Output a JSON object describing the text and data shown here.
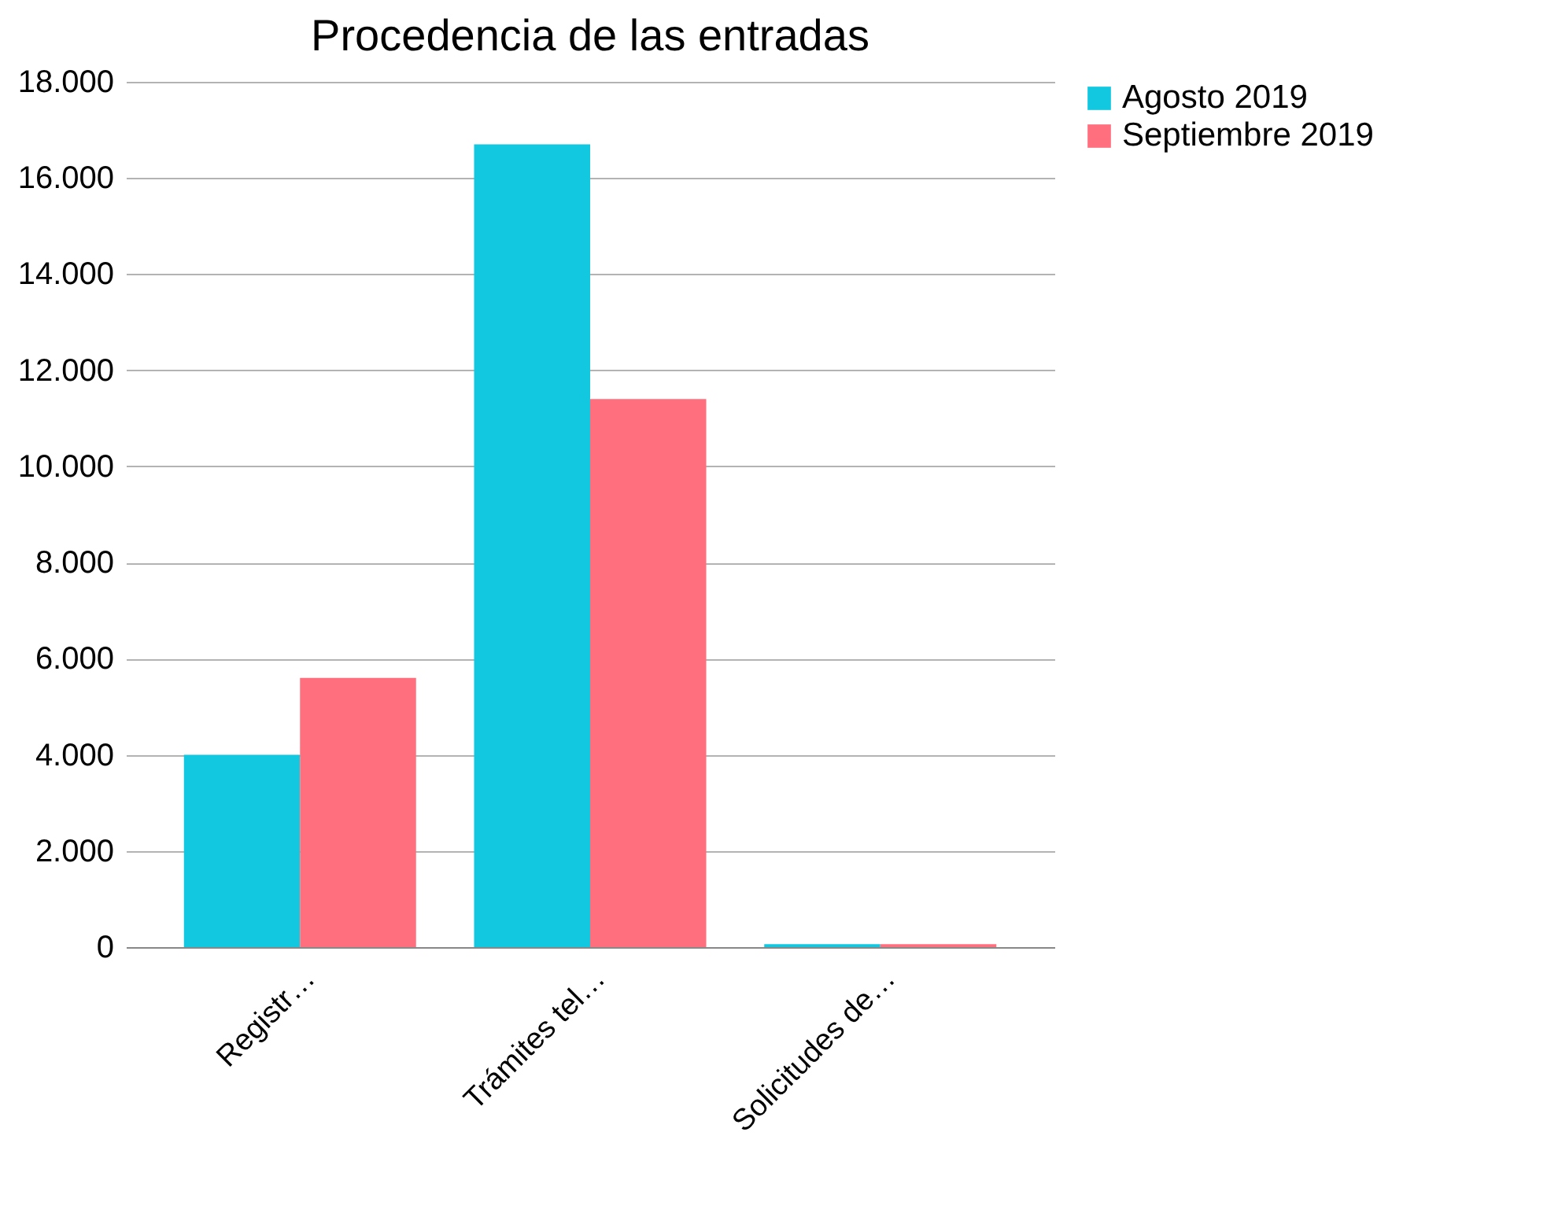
{
  "chart_data": {
    "type": "bar",
    "title": "Procedencia de las entradas",
    "categories": [
      "Registr…",
      "Trámites tel…",
      "Solicitudes de…"
    ],
    "series": [
      {
        "name": "Agosto 2019",
        "color": "#12c8e0",
        "values": [
          4000,
          16700,
          60
        ]
      },
      {
        "name": "Septiembre 2019",
        "color": "#ff6f7e",
        "values": [
          5600,
          11400,
          60
        ]
      }
    ],
    "ylim": [
      0,
      18000
    ],
    "yticks": [
      {
        "value": 0,
        "label": "0"
      },
      {
        "value": 2000,
        "label": "2.000"
      },
      {
        "value": 4000,
        "label": "4.000"
      },
      {
        "value": 6000,
        "label": "6.000"
      },
      {
        "value": 8000,
        "label": "8.000"
      },
      {
        "value": 10000,
        "label": "10.000"
      },
      {
        "value": 12000,
        "label": "12.000"
      },
      {
        "value": 14000,
        "label": "14.000"
      },
      {
        "value": 16000,
        "label": "16.000"
      },
      {
        "value": 18000,
        "label": "18.000"
      }
    ],
    "grid": "y",
    "legend": "right"
  }
}
